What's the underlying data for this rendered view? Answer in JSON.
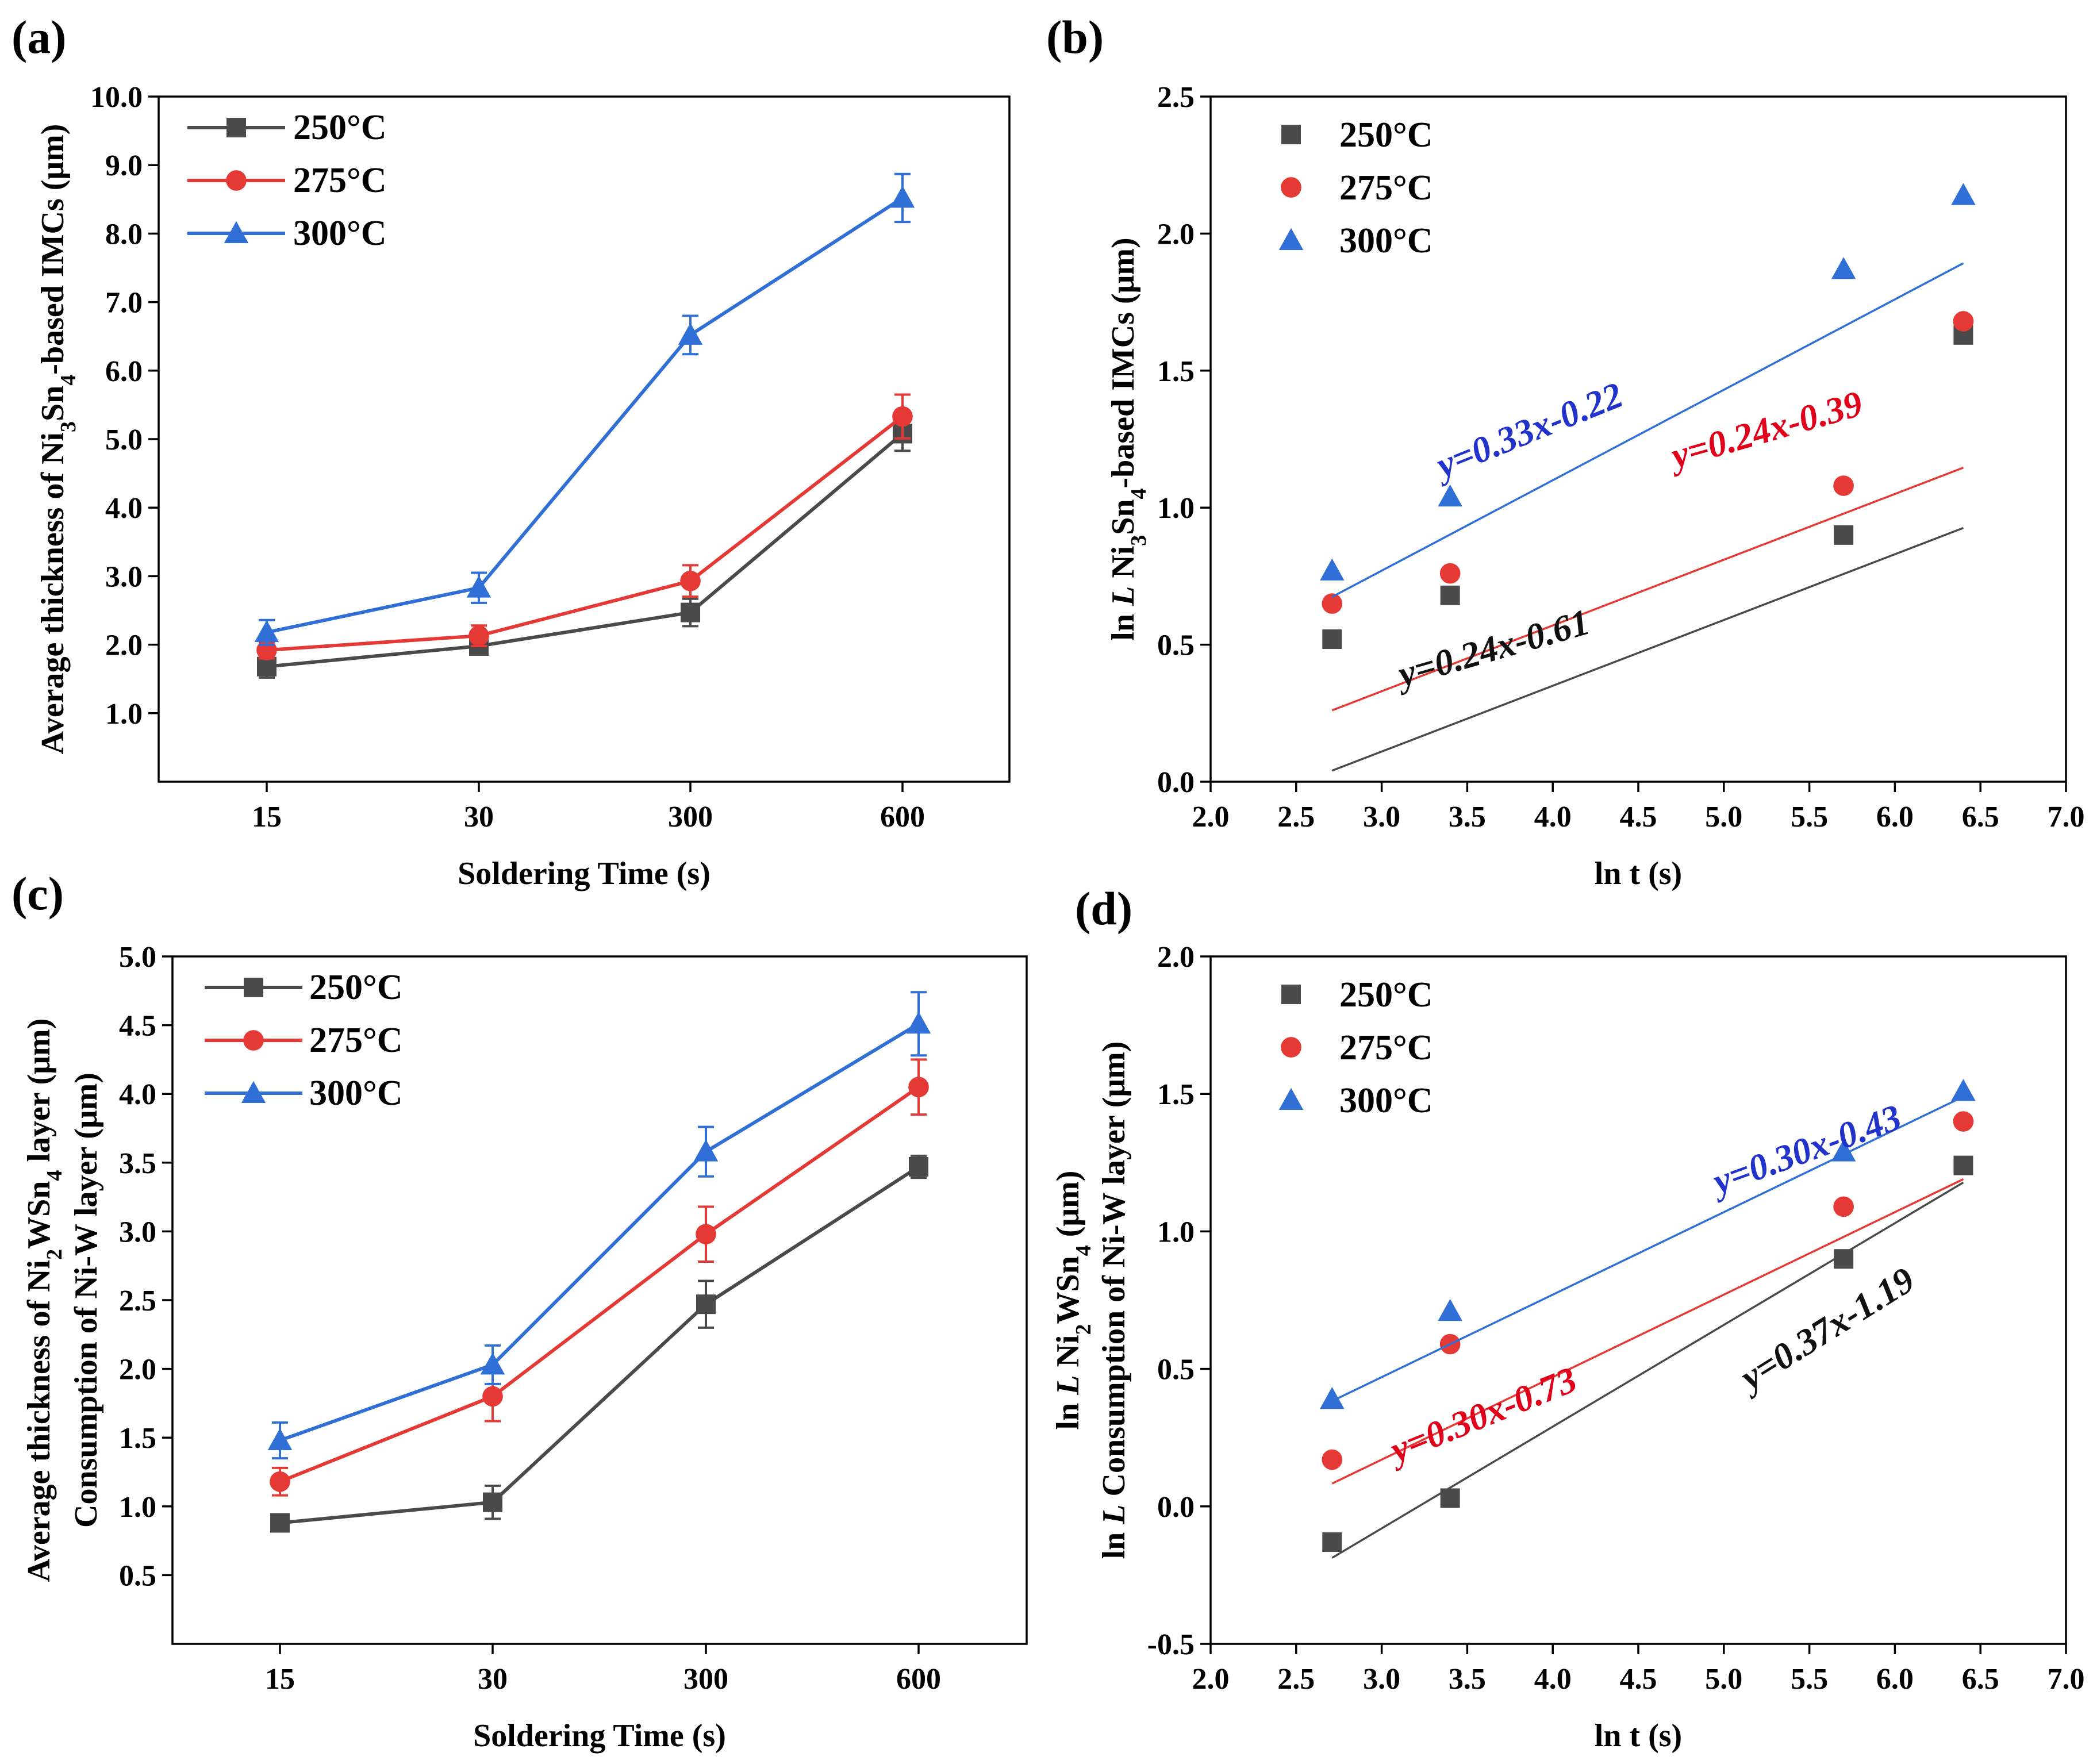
{
  "colors": {
    "250": "#4a4a4a",
    "275": "#e53935",
    "300": "#2f6fd6"
  },
  "chart_data": [
    {
      "panel": "(a)",
      "type": "line",
      "categories": [
        "15",
        "30",
        "300",
        "600"
      ],
      "series": [
        {
          "name": "250°C",
          "marker": "square",
          "values": [
            1.68,
            1.98,
            2.47,
            5.08
          ],
          "errors": [
            0.16,
            0.1,
            0.2,
            0.25
          ]
        },
        {
          "name": "275°C",
          "marker": "circle",
          "values": [
            1.92,
            2.13,
            2.93,
            5.33
          ],
          "errors": [
            0.12,
            0.15,
            0.23,
            0.32
          ]
        },
        {
          "name": "300°C",
          "marker": "triangle",
          "values": [
            2.18,
            2.83,
            6.52,
            8.52
          ],
          "errors": [
            0.18,
            0.22,
            0.28,
            0.35
          ]
        }
      ],
      "xlabel": "Soldering Time (s)",
      "ylabel_parts": [
        "Average thickness of Ni",
        "3",
        "Sn",
        "4",
        "-based IMCs (μm)"
      ],
      "ylim": [
        0,
        10
      ],
      "yticks": [
        "1.0",
        "2.0",
        "3.0",
        "4.0",
        "5.0",
        "6.0",
        "7.0",
        "8.0",
        "9.0",
        "10.0"
      ],
      "legend": "top-left"
    },
    {
      "panel": "(b)",
      "type": "scatter",
      "x": [
        2.71,
        3.4,
        5.7,
        6.4
      ],
      "series": [
        {
          "name": "250°C",
          "marker": "square",
          "values": [
            0.52,
            0.68,
            0.9,
            1.63
          ],
          "fit": "y=0.24x-0.61"
        },
        {
          "name": "275°C",
          "marker": "circle",
          "values": [
            0.65,
            0.76,
            1.08,
            1.68
          ],
          "fit": "y=0.24x-0.39"
        },
        {
          "name": "300°C",
          "marker": "triangle",
          "values": [
            0.77,
            1.04,
            1.87,
            2.14
          ],
          "fit": "y=0.33x-0.22"
        }
      ],
      "xlabel": "ln t (s)",
      "ylabel_parts": [
        "ln ",
        "L",
        " Ni",
        "3",
        "Sn",
        "4",
        "-based IMCs (μm)"
      ],
      "xlim": [
        2.0,
        7.0
      ],
      "ylim": [
        0.0,
        2.5
      ],
      "xticks": [
        "2.0",
        "2.5",
        "3.0",
        "3.5",
        "4.0",
        "4.5",
        "5.0",
        "5.5",
        "6.0",
        "6.5",
        "7.0"
      ],
      "yticks": [
        "0.0",
        "0.5",
        "1.0",
        "1.5",
        "2.0",
        "2.5"
      ],
      "legend": "top-left"
    },
    {
      "panel": "(c)",
      "type": "line",
      "categories": [
        "15",
        "30",
        "300",
        "600"
      ],
      "series": [
        {
          "name": "250°C",
          "marker": "square",
          "values": [
            0.88,
            1.03,
            2.47,
            3.47
          ],
          "errors": [
            0.04,
            0.12,
            0.17,
            0.08
          ]
        },
        {
          "name": "275°C",
          "marker": "circle",
          "values": [
            1.18,
            1.8,
            2.98,
            4.05
          ],
          "errors": [
            0.1,
            0.18,
            0.2,
            0.2
          ]
        },
        {
          "name": "300°C",
          "marker": "triangle",
          "values": [
            1.48,
            2.03,
            3.58,
            4.51
          ],
          "errors": [
            0.13,
            0.14,
            0.18,
            0.23
          ]
        }
      ],
      "xlabel": "Soldering Time (s)",
      "ylabel_parts": [
        "Average thickness of Ni",
        "2",
        "WSn",
        "4",
        " layer (μm)"
      ],
      "ylabel2": "Consumption of Ni-W layer (μm)",
      "ylim": [
        0,
        5.0
      ],
      "yticks": [
        "0.5",
        "1.0",
        "1.5",
        "2.0",
        "2.5",
        "3.0",
        "3.5",
        "4.0",
        "4.5",
        "5.0"
      ],
      "legend": "top-left"
    },
    {
      "panel": "(d)",
      "type": "scatter",
      "x": [
        2.71,
        3.4,
        5.7,
        6.4
      ],
      "series": [
        {
          "name": "250°C",
          "marker": "square",
          "values": [
            -0.13,
            0.03,
            0.9,
            1.24
          ],
          "fit": "y=0.37x-1.19"
        },
        {
          "name": "275°C",
          "marker": "circle",
          "values": [
            0.17,
            0.59,
            1.09,
            1.4
          ],
          "fit": "y=0.30x-0.73"
        },
        {
          "name": "300°C",
          "marker": "triangle",
          "values": [
            0.39,
            0.71,
            1.29,
            1.51
          ],
          "fit": "y=0.30x-0.43"
        }
      ],
      "xlabel": "ln t (s)",
      "ylabel_parts": [
        "ln ",
        "L",
        " Ni",
        "2",
        "WSn",
        "4",
        " (μm)"
      ],
      "ylabel2_parts": [
        "ln ",
        "L",
        " Consumption of Ni-W layer (μm)"
      ],
      "xlim": [
        2.0,
        7.0
      ],
      "ylim": [
        -0.5,
        2.0
      ],
      "xticks": [
        "2.0",
        "2.5",
        "3.0",
        "3.5",
        "4.0",
        "4.5",
        "5.0",
        "5.5",
        "6.0",
        "6.5",
        "7.0"
      ],
      "yticks": [
        "-0.5",
        "0.0",
        "0.5",
        "1.0",
        "1.5",
        "2.0"
      ],
      "legend": "top-left"
    }
  ]
}
